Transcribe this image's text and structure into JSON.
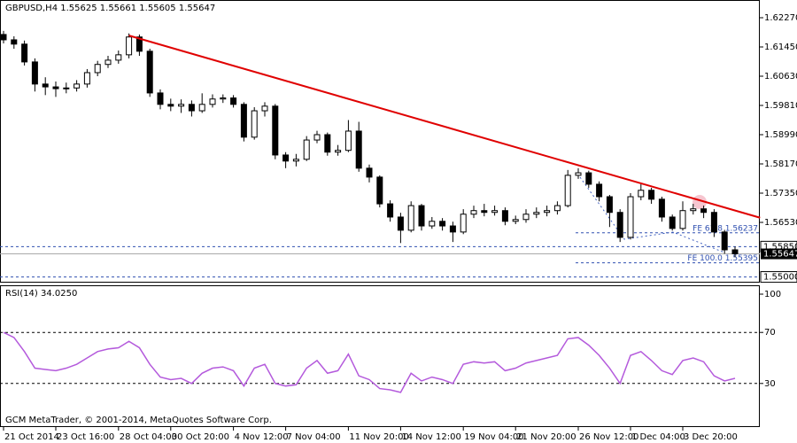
{
  "chart_data": [
    {
      "type": "candlestick",
      "title": "GBPUSD,H4  1.55625 1.55661 1.55605 1.55647",
      "categories": [
        "21 Oct 2014",
        null,
        null,
        null,
        null,
        "23 Oct 16:00",
        null,
        null,
        null,
        null,
        null,
        "28 Oct 04:00",
        null,
        null,
        null,
        null,
        "30 Oct 20:00",
        null,
        null,
        null,
        null,
        null,
        "4 Nov 12:00",
        null,
        null,
        null,
        null,
        "7 Nov 04:00",
        null,
        null,
        null,
        null,
        null,
        "11 Nov 20:00",
        null,
        null,
        null,
        null,
        "14 Nov 12:00",
        null,
        null,
        null,
        null,
        null,
        "19 Nov 04:00",
        null,
        null,
        null,
        null,
        "21 Nov 20:00",
        null,
        null,
        null,
        null,
        null,
        "26 Nov 12:00",
        null,
        null,
        null,
        null,
        "1 Dec 04:00",
        null,
        null,
        null,
        null,
        "3 Dec 20:00",
        null,
        null,
        null,
        null,
        null
      ],
      "open": [
        1.618,
        1.6165,
        1.6153,
        1.6103,
        1.6041,
        1.6033,
        1.6028,
        1.603,
        1.6041,
        1.6073,
        1.6096,
        1.6108,
        1.6123,
        1.6173,
        1.6133,
        1.6016,
        1.5984,
        1.5979,
        1.5984,
        1.5966,
        1.5984,
        1.5999,
        1.6002,
        1.5984,
        1.5892,
        1.5966,
        1.5979,
        1.5842,
        1.5825,
        1.583,
        1.5884,
        1.5899,
        1.585,
        1.5855,
        1.5909,
        1.5805,
        1.578,
        1.5705,
        1.5668,
        1.5631,
        1.57,
        1.5643,
        1.5656,
        1.5643,
        1.5626,
        1.5676,
        1.5686,
        1.5681,
        1.5686,
        1.5656,
        1.5661,
        1.5676,
        1.5681,
        1.5686,
        1.57,
        1.5785,
        1.5792,
        1.576,
        1.5725,
        1.5681,
        1.5611,
        1.5725,
        1.5743,
        1.5718,
        1.5668,
        1.5636,
        1.5686,
        1.5691,
        1.5681,
        1.5626,
        1.5576
      ],
      "high": [
        1.619,
        1.6175,
        1.6163,
        1.6113,
        1.606,
        1.6048,
        1.6045,
        1.6052,
        1.6083,
        1.6106,
        1.612,
        1.6135,
        1.6183,
        1.618,
        1.614,
        1.6026,
        1.6,
        1.5998,
        1.5995,
        1.6015,
        1.6012,
        1.6012,
        1.601,
        1.599,
        1.5976,
        1.599,
        1.5985,
        1.585,
        1.5845,
        1.5895,
        1.591,
        1.5905,
        1.587,
        1.594,
        1.5935,
        1.5815,
        1.5785,
        1.5715,
        1.568,
        1.5712,
        1.5705,
        1.5668,
        1.5665,
        1.5655,
        1.569,
        1.57,
        1.5705,
        1.57,
        1.5695,
        1.5672,
        1.569,
        1.5695,
        1.57,
        1.5712,
        1.58,
        1.5805,
        1.5798,
        1.5768,
        1.573,
        1.569,
        1.5735,
        1.576,
        1.575,
        1.5725,
        1.5675,
        1.5712,
        1.5705,
        1.57,
        1.569,
        1.5632,
        1.5585
      ],
      "low": [
        1.6155,
        1.614,
        1.6093,
        1.602,
        1.601,
        1.6005,
        1.6015,
        1.602,
        1.6031,
        1.6063,
        1.6086,
        1.6098,
        1.6113,
        1.612,
        1.6005,
        1.597,
        1.5965,
        1.596,
        1.595,
        1.596,
        1.5975,
        1.5988,
        1.5975,
        1.588,
        1.5885,
        1.595,
        1.583,
        1.5805,
        1.581,
        1.5825,
        1.5875,
        1.584,
        1.584,
        1.585,
        1.5795,
        1.5765,
        1.5695,
        1.5655,
        1.5595,
        1.5625,
        1.563,
        1.5635,
        1.563,
        1.5598,
        1.562,
        1.5665,
        1.567,
        1.5672,
        1.5645,
        1.5648,
        1.5652,
        1.5665,
        1.567,
        1.5675,
        1.5695,
        1.5775,
        1.575,
        1.5712,
        1.564,
        1.5598,
        1.5605,
        1.5715,
        1.5705,
        1.5655,
        1.563,
        1.563,
        1.5675,
        1.5665,
        1.5612,
        1.5565,
        1.5555
      ],
      "close": [
        1.6165,
        1.6153,
        1.6103,
        1.6041,
        1.6033,
        1.6028,
        1.603,
        1.6041,
        1.6073,
        1.6096,
        1.6108,
        1.6123,
        1.6173,
        1.6133,
        1.6016,
        1.5984,
        1.5979,
        1.5984,
        1.5966,
        1.5984,
        1.5999,
        1.6002,
        1.5984,
        1.5892,
        1.5966,
        1.5979,
        1.5842,
        1.5825,
        1.583,
        1.5884,
        1.5899,
        1.585,
        1.5855,
        1.5909,
        1.5805,
        1.578,
        1.5705,
        1.5668,
        1.5631,
        1.57,
        1.5643,
        1.5656,
        1.5643,
        1.5626,
        1.5676,
        1.5686,
        1.5681,
        1.5686,
        1.5656,
        1.5661,
        1.5676,
        1.5681,
        1.5686,
        1.57,
        1.5785,
        1.5792,
        1.576,
        1.5725,
        1.5681,
        1.5611,
        1.5725,
        1.5743,
        1.5718,
        1.5668,
        1.5636,
        1.5686,
        1.5691,
        1.5681,
        1.5626,
        1.5576,
        1.5565
      ],
      "color": "#000000",
      "ylim": [
        1.54865,
        1.62767
      ],
      "yticks": [
        {
          "value": 1.6227,
          "label": "1.62270"
        },
        {
          "value": 1.6145,
          "label": "1.61450"
        },
        {
          "value": 1.6063,
          "label": "1.60630"
        },
        {
          "value": 1.5981,
          "label": "1.59810"
        },
        {
          "value": 1.5899,
          "label": "1.58990"
        },
        {
          "value": 1.5817,
          "label": "1.58170"
        },
        {
          "value": 1.5735,
          "label": "1.57350"
        },
        {
          "value": 1.5653,
          "label": "1.56530"
        }
      ],
      "levels": [
        {
          "value": 1.5585,
          "label": "1.55850"
        },
        {
          "value": 1.55,
          "label": "1.55000"
        }
      ],
      "last_price": {
        "value": 1.55647,
        "label": "1.55647"
      },
      "fe_levels": [
        {
          "value": 1.56237,
          "label": "FE 61.8 1.56237"
        },
        {
          "value": 1.55395,
          "label": "FE 100.0 1.55395"
        }
      ],
      "trendline": {
        "x": [
          12,
          72.4
        ],
        "y": [
          1.6177,
          1.5666
        ],
        "color": "#e00000"
      }
    },
    {
      "type": "line",
      "title": "RSI(14) 34.0250",
      "color": "#b45adc",
      "values": [
        70,
        66,
        55,
        42,
        41,
        40,
        42,
        45,
        50,
        55,
        57,
        58,
        63,
        58,
        45,
        35,
        33,
        34,
        30,
        38,
        42,
        43,
        40,
        28,
        42,
        45,
        30,
        28,
        29,
        42,
        48,
        38,
        40,
        53,
        36,
        33,
        26,
        25,
        23,
        38,
        32,
        35,
        33,
        30,
        45,
        47,
        46,
        47,
        40,
        42,
        46,
        48,
        50,
        52,
        65,
        66,
        60,
        52,
        42,
        30,
        52,
        55,
        48,
        40,
        37,
        48,
        50,
        47,
        36,
        32,
        34
      ],
      "ylim": [
        0,
        100
      ],
      "yticks": [
        100,
        70,
        30
      ],
      "levels": [
        70,
        30
      ],
      "watermark": "GCM MetaTrader, © 2001-2014, MetaQuotes Software Corp."
    }
  ]
}
